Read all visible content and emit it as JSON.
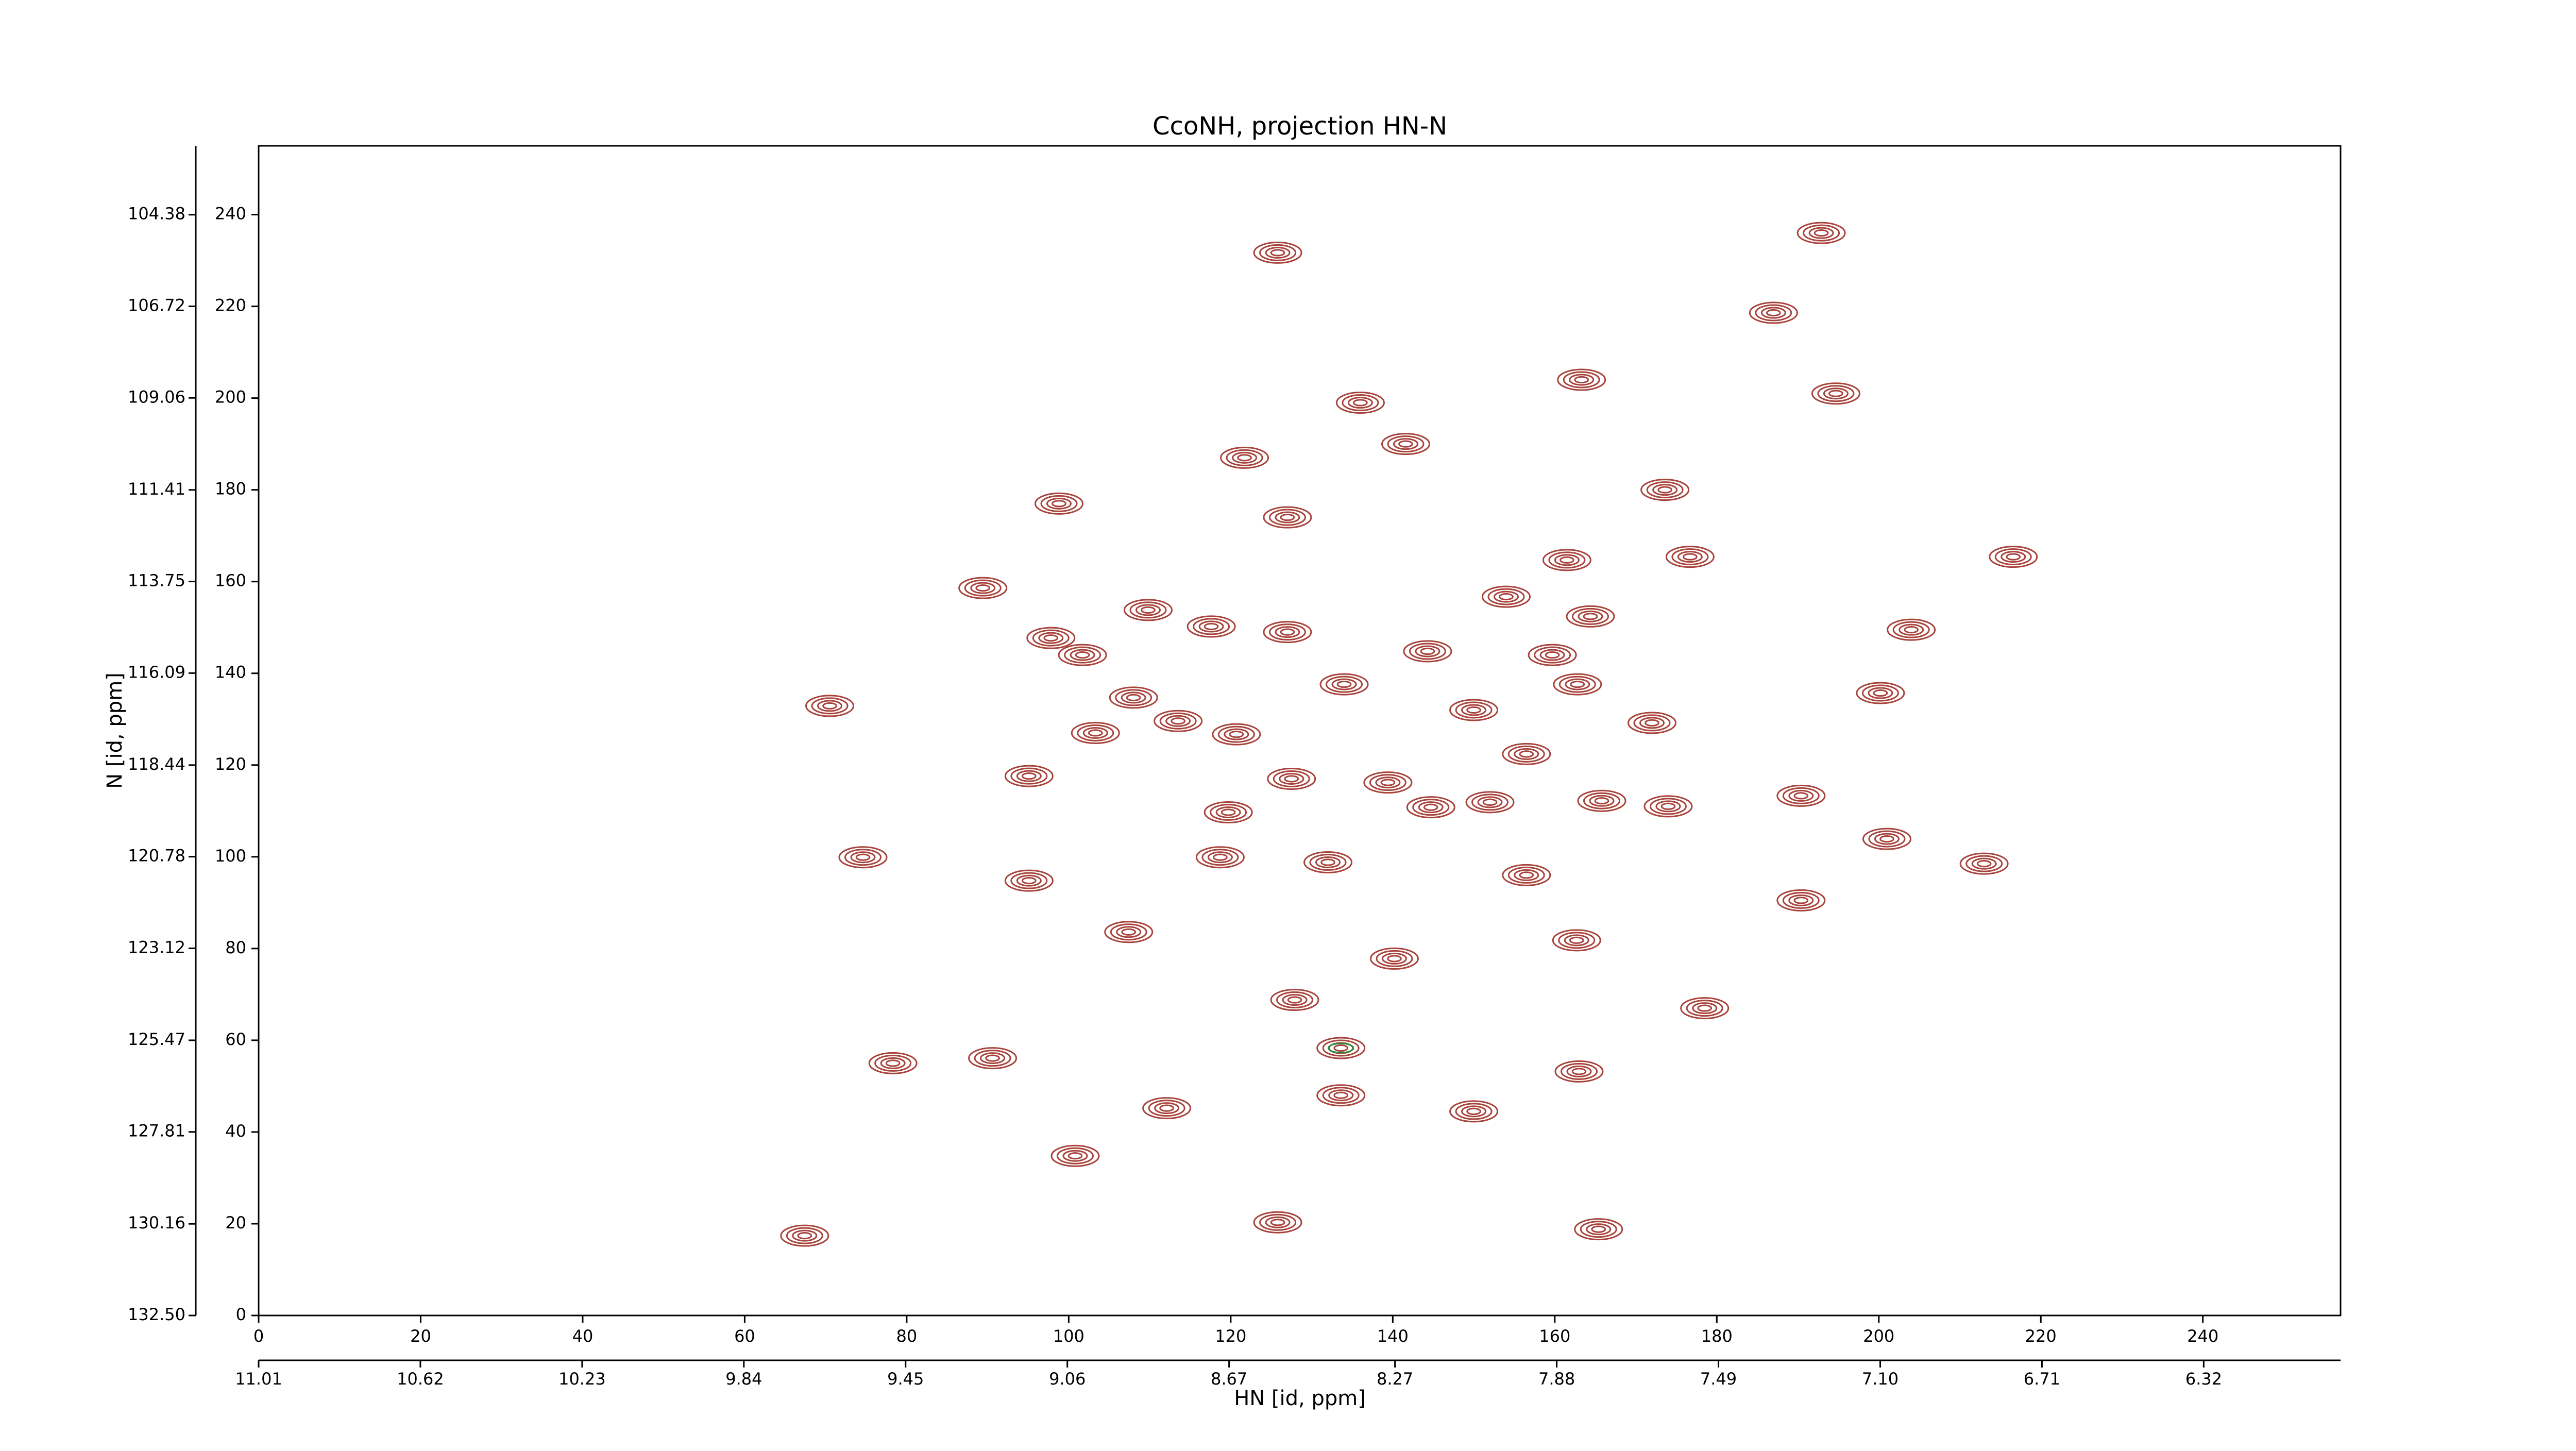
{
  "chart_data": {
    "type": "contour",
    "title": "CcoNH, projection HN-N",
    "xlabel": "HN [id, ppm]",
    "ylabel": "N [id, ppm]",
    "xlim": [
      0,
      257
    ],
    "ylim": [
      0,
      255
    ],
    "xticks": [
      0,
      20,
      40,
      60,
      80,
      100,
      120,
      140,
      160,
      180,
      200,
      220,
      240
    ],
    "yticks": [
      0,
      20,
      40,
      60,
      80,
      100,
      120,
      140,
      160,
      180,
      200,
      220,
      240
    ],
    "x2lim": [
      11.01,
      5.99
    ],
    "x2ticks": [
      11.01,
      10.62,
      10.23,
      9.84,
      9.45,
      9.06,
      8.67,
      8.27,
      7.88,
      7.49,
      {
        "value": 7.1,
        "label": "7.10"
      },
      6.71,
      6.32
    ],
    "y2lim": [
      132.5,
      102.62
    ],
    "y2ticks": [
      {
        "value": 132.5,
        "label": "132.50"
      },
      130.16,
      127.81,
      125.47,
      123.12,
      120.78,
      118.44,
      116.09,
      113.75,
      111.41,
      109.06,
      106.72,
      104.38
    ],
    "color": "#a8433c",
    "negative_color": "#2e8b3a",
    "peaks": {
      "x": [
        125.8,
        192.9,
        187.0,
        163.3,
        194.7,
        136.0,
        141.6,
        121.7,
        98.8,
        173.6,
        127.0,
        176.7,
        161.5,
        216.6,
        89.4,
        154.0,
        109.8,
        117.6,
        127.0,
        204.0,
        164.4,
        97.8,
        101.7,
        144.3,
        159.7,
        162.8,
        134.0,
        200.2,
        70.5,
        108.0,
        150.0,
        113.5,
        103.3,
        120.7,
        172.0,
        156.5,
        95.1,
        127.5,
        139.4,
        165.8,
        152.0,
        174.0,
        190.4,
        144.7,
        119.7,
        201.0,
        74.6,
        118.7,
        213.0,
        95.1,
        132.0,
        156.5,
        190.4,
        107.4,
        162.7,
        140.2,
        178.5,
        127.9,
        133.6,
        90.6,
        78.3,
        163.0,
        112.1,
        150.0,
        100.8,
        125.8,
        165.4,
        67.4,
        133.6
      ],
      "y": [
        231.7,
        236.0,
        218.6,
        204.0,
        201.0,
        199.0,
        190.0,
        187.0,
        177.0,
        180.0,
        174.0,
        165.4,
        164.7,
        165.4,
        158.6,
        156.7,
        153.8,
        150.2,
        149.0,
        149.5,
        152.4,
        147.7,
        144.0,
        144.8,
        144.0,
        137.6,
        137.6,
        135.7,
        132.9,
        134.7,
        132.0,
        129.6,
        127.0,
        126.7,
        129.2,
        122.4,
        117.6,
        117.0,
        116.2,
        112.2,
        111.9,
        111.0,
        113.3,
        110.8,
        109.7,
        103.9,
        99.9,
        99.9,
        98.5,
        94.8,
        98.8,
        96.0,
        90.5,
        83.6,
        81.8,
        77.8,
        67.0,
        68.8,
        58.3,
        56.1,
        55.0,
        53.2,
        45.2,
        44.5,
        34.8,
        20.3,
        18.8,
        17.4,
        48.0
      ]
    }
  }
}
